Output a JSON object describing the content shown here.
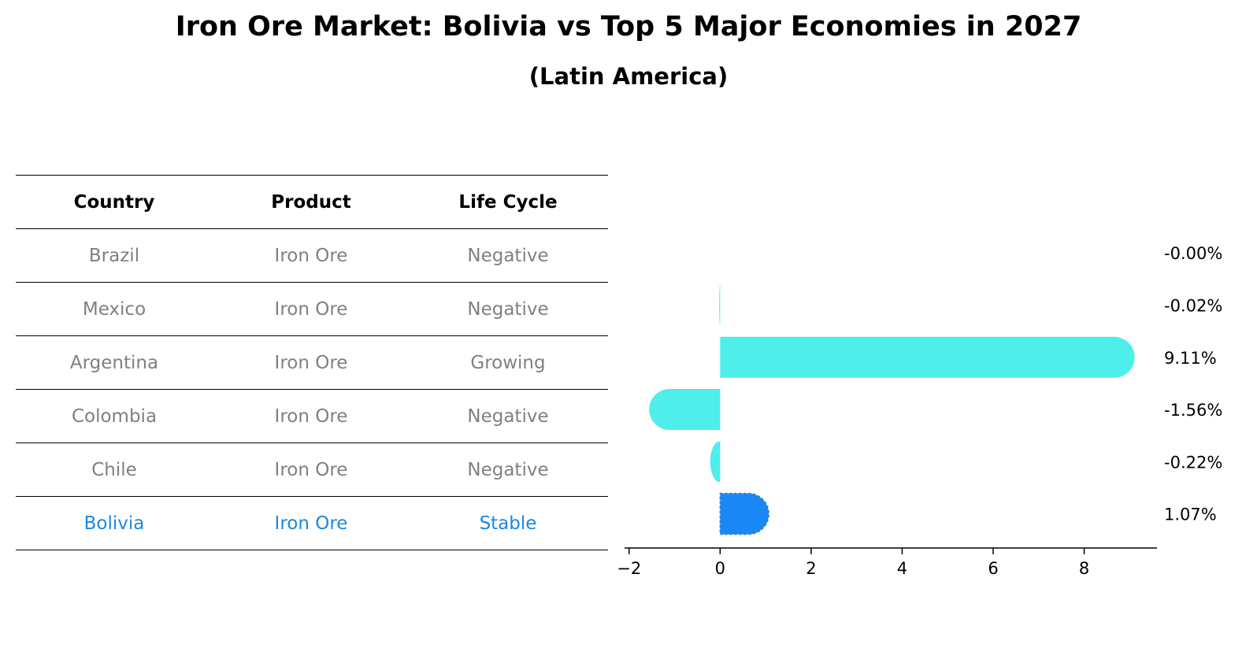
{
  "title": "Iron Ore Market: Bolivia vs Top 5 Major Economies in 2027",
  "subtitle": "(Latin America)",
  "table": {
    "headers": [
      "Country",
      "Product",
      "Life Cycle"
    ],
    "rows": [
      {
        "country": "Brazil",
        "product": "Iron Ore",
        "life_cycle": "Negative"
      },
      {
        "country": "Mexico",
        "product": "Iron Ore",
        "life_cycle": "Negative"
      },
      {
        "country": "Argentina",
        "product": "Iron Ore",
        "life_cycle": "Growing"
      },
      {
        "country": "Colombia",
        "product": "Iron Ore",
        "life_cycle": "Negative"
      },
      {
        "country": "Chile",
        "product": "Iron Ore",
        "life_cycle": "Negative"
      },
      {
        "country": "Bolivia",
        "product": "Iron Ore",
        "life_cycle": "Stable"
      }
    ]
  },
  "colors": {
    "bar": "#4eeeea",
    "highlight": "#1a88f4",
    "muted_text": "#808080",
    "highlight_text": "#1a88e0"
  },
  "chart_data": {
    "type": "bar",
    "orientation": "horizontal",
    "categories": [
      "Brazil",
      "Mexico",
      "Argentina",
      "Colombia",
      "Chile",
      "Bolivia"
    ],
    "values": [
      -0.0,
      -0.02,
      9.11,
      -1.56,
      -0.22,
      1.07
    ],
    "value_labels": [
      "-0.00%",
      "-0.02%",
      "9.11%",
      "-1.56%",
      "-0.22%",
      "1.07%"
    ],
    "highlight": "Bolivia",
    "xlim": [
      -2.1,
      9.6
    ],
    "xticks": [
      -2,
      0,
      2,
      4,
      6,
      8
    ],
    "xtick_labels": [
      "−2",
      "0",
      "2",
      "4",
      "6",
      "8"
    ],
    "grid": false
  }
}
